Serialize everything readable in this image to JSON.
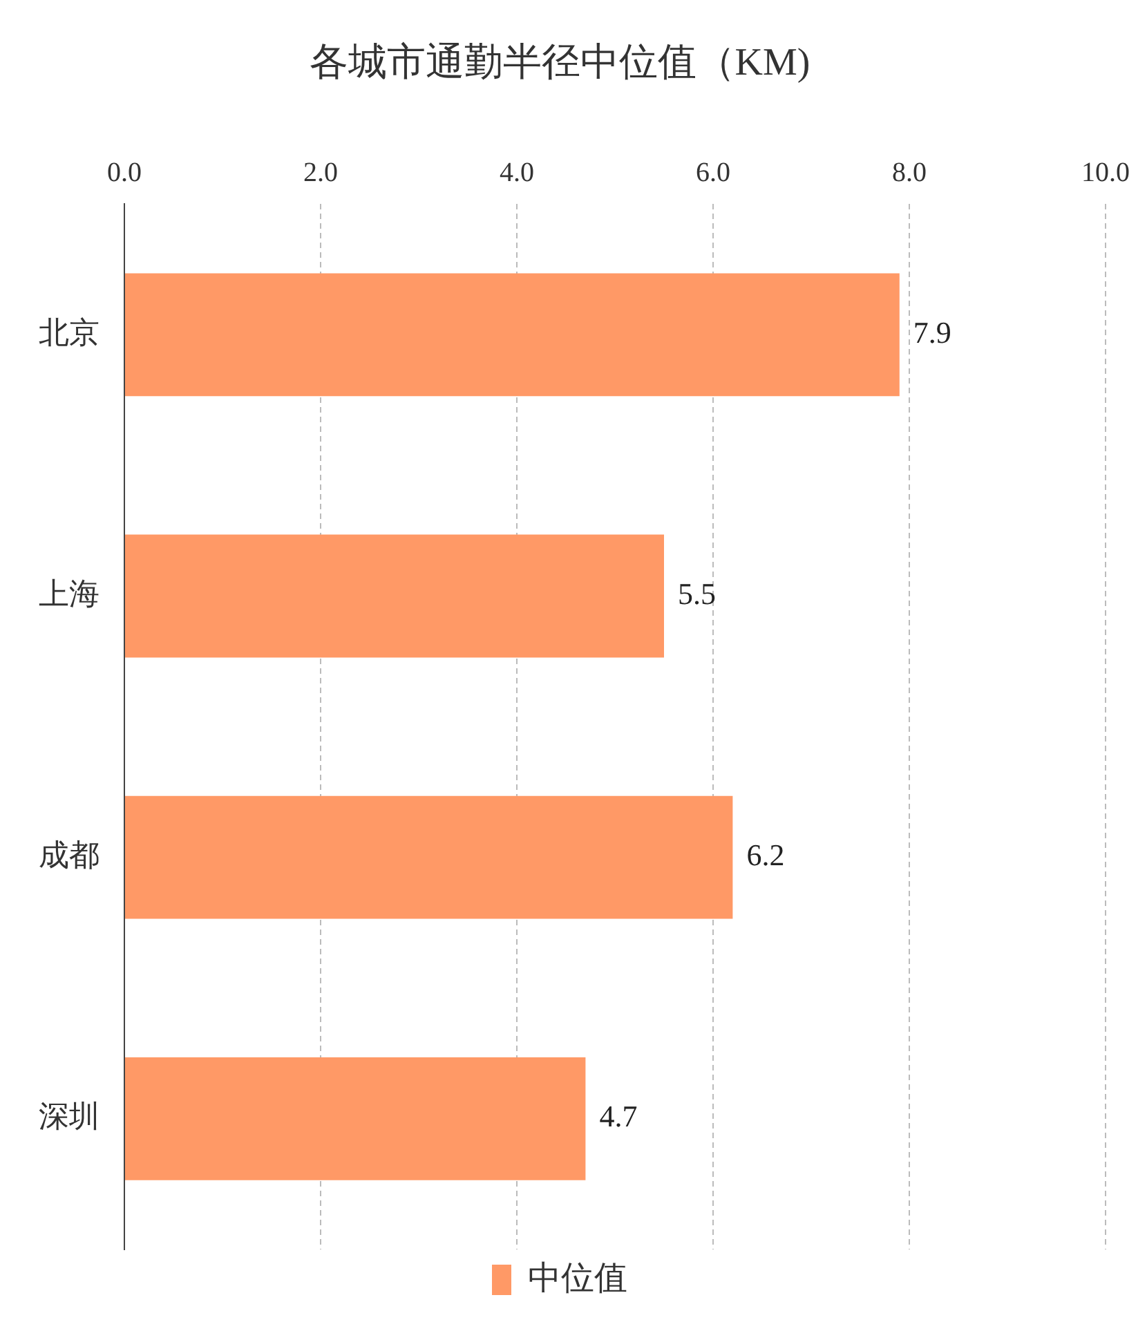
{
  "chart_data": {
    "type": "bar",
    "orientation": "horizontal",
    "title": "各城市通勤半径中位值（KM)",
    "categories": [
      "北京",
      "上海",
      "成都",
      "深圳"
    ],
    "series": [
      {
        "name": "中位值",
        "color": "#ff9966",
        "values": [
          7.9,
          5.5,
          6.2,
          4.7
        ]
      }
    ],
    "xlim": [
      0,
      10
    ],
    "xticks": [
      {
        "value": 0,
        "label": "0.0"
      },
      {
        "value": 2,
        "label": "2.0"
      },
      {
        "value": 4,
        "label": "4.0"
      },
      {
        "value": 6,
        "label": "6.0"
      },
      {
        "value": 8,
        "label": "8.0"
      },
      {
        "value": 10,
        "label": "10.0"
      }
    ],
    "grid": "x",
    "legend": "bottom",
    "data_labels": true
  }
}
